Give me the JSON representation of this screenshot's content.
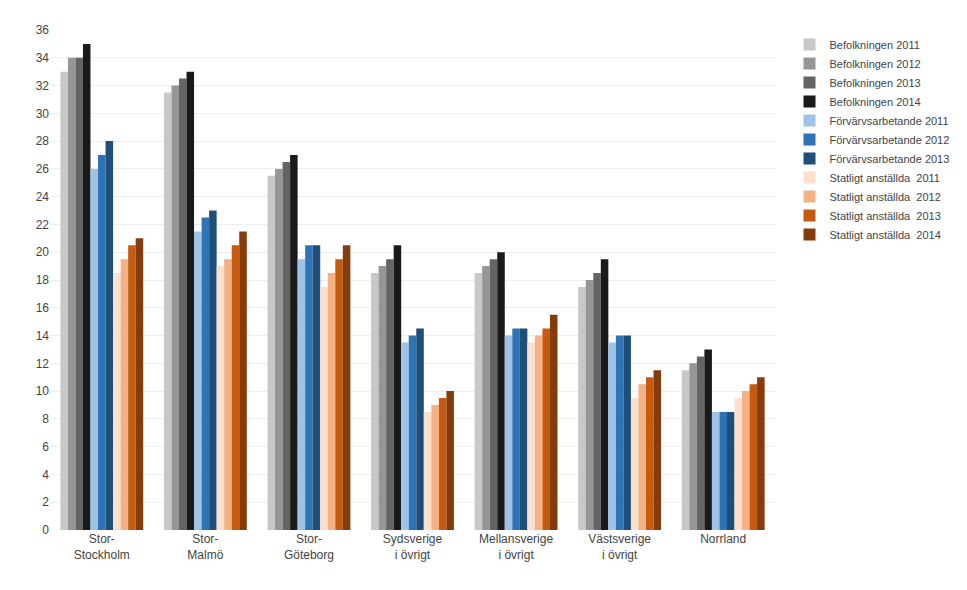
{
  "chart_data": {
    "type": "bar",
    "categories": [
      "Stor-\nStockholm",
      "Stor-\nMalmö",
      "Stor-\nGöteborg",
      "Sydsverige\ni övrigt",
      "Mellansverige\ni övrigt",
      "Västsverige\ni övrigt",
      "Norrland"
    ],
    "series": [
      {
        "name": "Befolkningen 2011",
        "color": "#c8c8c8",
        "values": [
          33.0,
          31.5,
          25.5,
          18.5,
          18.5,
          17.5,
          11.5
        ]
      },
      {
        "name": "Befolkningen 2012",
        "color": "#969696",
        "values": [
          34.0,
          32.0,
          26.0,
          19.0,
          19.0,
          18.0,
          12.0
        ]
      },
      {
        "name": "Befolkningen 2013",
        "color": "#646464",
        "values": [
          34.0,
          32.5,
          26.5,
          19.5,
          19.5,
          18.5,
          12.5
        ]
      },
      {
        "name": "Befolkningen 2014",
        "color": "#1a1a1a",
        "values": [
          35.0,
          33.0,
          27.0,
          20.5,
          20.0,
          19.5,
          13.0
        ]
      },
      {
        "name": "Förvärvsarbetande 2011",
        "color": "#9dc3e6",
        "values": [
          26.0,
          21.5,
          19.5,
          13.5,
          14.0,
          13.5,
          8.5
        ]
      },
      {
        "name": "Förvärvsarbetande 2012",
        "color": "#2e74b5",
        "values": [
          27.0,
          22.5,
          20.5,
          14.0,
          14.5,
          14.0,
          8.5
        ]
      },
      {
        "name": "Förvärvsarbetande 2013",
        "color": "#1f4e79",
        "values": [
          28.0,
          23.0,
          20.5,
          14.5,
          14.5,
          14.0,
          8.5
        ]
      },
      {
        "name": "Statligt anställda  2011",
        "color": "#fbe0cd",
        "values": [
          18.5,
          19.0,
          17.5,
          8.5,
          13.5,
          9.5,
          9.5
        ]
      },
      {
        "name": "Statligt anställda  2012",
        "color": "#f4b183",
        "values": [
          19.5,
          19.5,
          18.5,
          9.0,
          14.0,
          10.5,
          10.0
        ]
      },
      {
        "name": "Statligt anställda  2013",
        "color": "#c55a11",
        "values": [
          20.5,
          20.5,
          19.5,
          9.5,
          14.5,
          11.0,
          10.5
        ]
      },
      {
        "name": "Statligt anställda  2014",
        "color": "#843c0c",
        "values": [
          21.0,
          21.5,
          20.5,
          10.0,
          15.5,
          11.5,
          11.0
        ]
      }
    ],
    "ylim": [
      0,
      36
    ],
    "yticks": [
      0,
      2,
      4,
      6,
      8,
      10,
      12,
      14,
      16,
      18,
      20,
      22,
      24,
      26,
      28,
      30,
      32,
      34,
      36
    ],
    "grid": true,
    "legend": "upper right"
  }
}
